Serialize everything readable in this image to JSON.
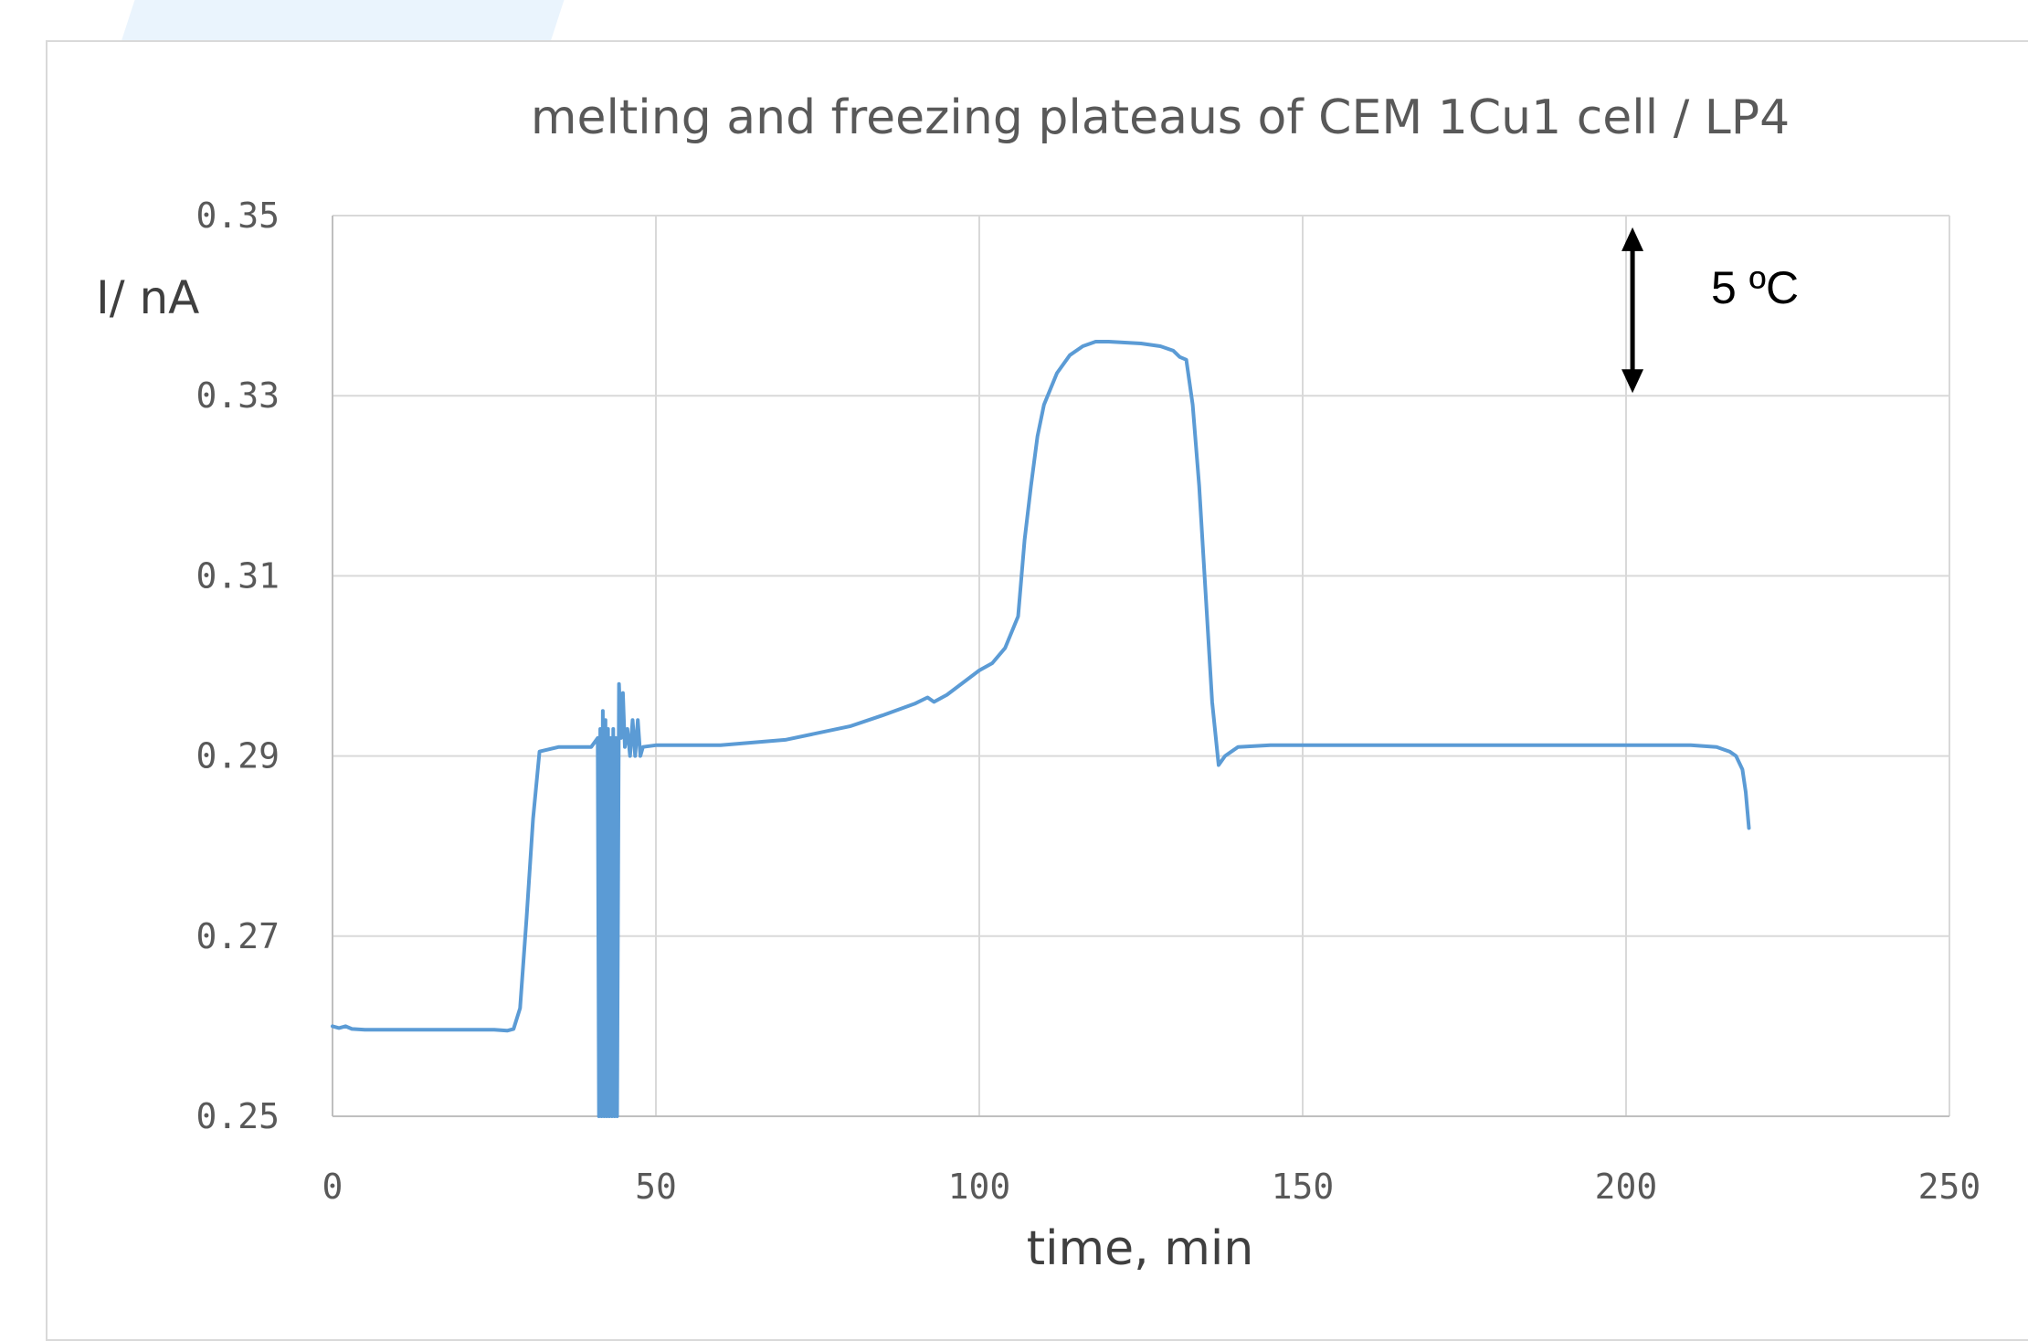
{
  "chart_data": {
    "type": "line",
    "title": "melting and freezing plateaus of  CEM 1Cu1 cell / LP4",
    "xlabel": "time, min",
    "ylabel": "I/ nA",
    "xlim": [
      0,
      250
    ],
    "ylim": [
      0.25,
      0.35
    ],
    "x_ticks": [
      "0",
      "50",
      "100",
      "150",
      "200",
      "250"
    ],
    "y_ticks": [
      "0.25",
      "0.27",
      "0.29",
      "0.31",
      "0.33",
      "0.35"
    ],
    "grid": true,
    "line_color": "#5b9bd5",
    "annotation": {
      "text": "5 ºC",
      "arrow_from": 0.3487,
      "arrow_to": 0.3303,
      "x": 201
    },
    "series": [
      {
        "x": [
          0,
          1,
          2,
          3,
          5,
          10,
          20,
          25,
          27,
          28,
          29,
          30,
          31,
          32,
          35,
          40,
          41,
          41.2,
          41.4,
          41.6,
          41.8,
          42,
          42.2,
          42.4,
          42.6,
          42.8,
          43,
          43.2,
          43.4,
          43.6,
          43.8,
          44,
          44.3,
          44.6,
          44.9,
          45.2,
          45.6,
          46,
          46.4,
          46.8,
          47.2,
          47.6,
          48,
          50,
          60,
          70,
          80,
          85,
          90,
          92,
          93,
          95,
          100,
          102,
          104,
          106,
          107,
          108,
          109,
          110,
          112,
          114,
          116,
          118,
          120,
          125,
          128,
          130,
          131,
          132,
          133,
          134,
          135,
          136,
          137,
          138,
          139,
          140,
          145,
          150,
          160,
          180,
          200,
          210,
          214,
          216,
          217,
          218,
          218.5,
          219
        ],
        "y": [
          0.26,
          0.2598,
          0.26,
          0.2597,
          0.2596,
          0.2596,
          0.2596,
          0.2596,
          0.2595,
          0.2597,
          0.262,
          0.272,
          0.283,
          0.2905,
          0.291,
          0.291,
          0.292,
          0.25,
          0.293,
          0.25,
          0.295,
          0.25,
          0.294,
          0.25,
          0.293,
          0.25,
          0.292,
          0.25,
          0.293,
          0.25,
          0.292,
          0.25,
          0.298,
          0.292,
          0.297,
          0.291,
          0.293,
          0.29,
          0.294,
          0.29,
          0.294,
          0.29,
          0.291,
          0.2912,
          0.2912,
          0.2918,
          0.2933,
          0.2945,
          0.2958,
          0.2965,
          0.296,
          0.2968,
          0.2995,
          0.3003,
          0.302,
          0.3055,
          0.314,
          0.32,
          0.3255,
          0.329,
          0.3325,
          0.3345,
          0.3355,
          0.336,
          0.336,
          0.3358,
          0.3355,
          0.335,
          0.3343,
          0.334,
          0.329,
          0.32,
          0.308,
          0.296,
          0.289,
          0.29,
          0.2905,
          0.291,
          0.2912,
          0.2912,
          0.2912,
          0.2912,
          0.2912,
          0.2912,
          0.291,
          0.2905,
          0.29,
          0.2885,
          0.286,
          0.282
        ]
      }
    ]
  }
}
